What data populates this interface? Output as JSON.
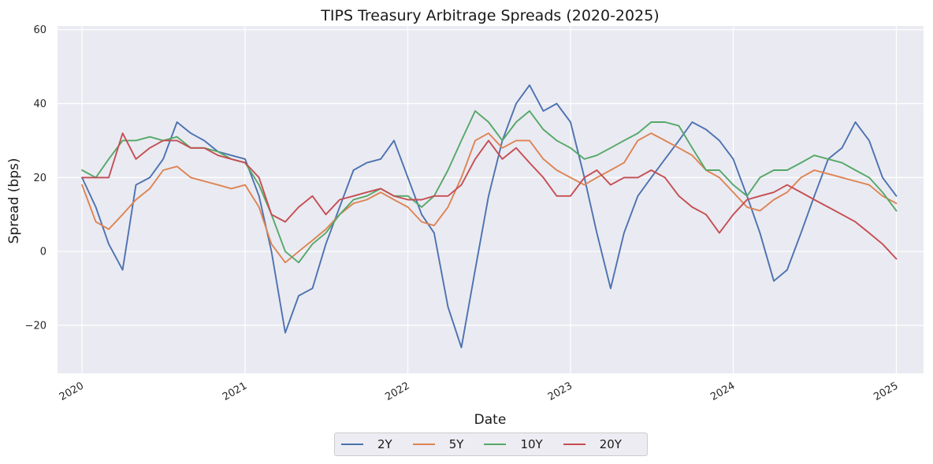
{
  "chart_data": {
    "type": "line",
    "title": "TIPS Treasury Arbitrage Spreads (2020-2025)",
    "xlabel": "Date",
    "ylabel": "Spread (bps)",
    "x_ticks": [
      "2020",
      "2021",
      "2022",
      "2023",
      "2024",
      "2025"
    ],
    "y_ticks": [
      "60",
      "40",
      "20",
      "0",
      "−20"
    ],
    "xlim": [
      "2019-11-07",
      "2025-03-03"
    ],
    "ylim": [
      -33,
      61
    ],
    "grid": true,
    "legend_position": "bottom-center",
    "x": [
      "2020-01-01",
      "2020-02-01",
      "2020-03-01",
      "2020-04-01",
      "2020-05-01",
      "2020-06-01",
      "2020-07-01",
      "2020-08-01",
      "2020-09-01",
      "2020-10-01",
      "2020-11-01",
      "2020-12-01",
      "2021-01-01",
      "2021-02-01",
      "2021-03-01",
      "2021-04-01",
      "2021-05-01",
      "2021-06-01",
      "2021-07-01",
      "2021-08-01",
      "2021-09-01",
      "2021-10-01",
      "2021-11-01",
      "2021-12-01",
      "2022-01-01",
      "2022-02-01",
      "2022-03-01",
      "2022-04-01",
      "2022-05-01",
      "2022-06-01",
      "2022-07-01",
      "2022-08-01",
      "2022-09-01",
      "2022-10-01",
      "2022-11-01",
      "2022-12-01",
      "2023-01-01",
      "2023-02-01",
      "2023-03-01",
      "2023-04-01",
      "2023-05-01",
      "2023-06-01",
      "2023-07-01",
      "2023-08-01",
      "2023-09-01",
      "2023-10-01",
      "2023-11-01",
      "2023-12-01",
      "2024-01-01",
      "2024-02-01",
      "2024-03-01",
      "2024-04-01",
      "2024-05-01",
      "2024-06-01",
      "2024-07-01",
      "2024-08-01",
      "2024-09-01",
      "2024-10-01",
      "2024-11-01",
      "2024-12-01",
      "2025-01-01"
    ],
    "series": [
      {
        "name": "2Y",
        "color": "#4c72b0",
        "values": [
          20,
          12,
          2,
          -5,
          18,
          20,
          25,
          35,
          32,
          30,
          27,
          26,
          25,
          15,
          0,
          -22,
          -12,
          -10,
          2,
          12,
          22,
          24,
          25,
          30,
          20,
          10,
          5,
          -15,
          -26,
          -5,
          15,
          30,
          40,
          45,
          38,
          40,
          35,
          20,
          5,
          -10,
          5,
          15,
          20,
          25,
          30,
          35,
          33,
          30,
          25,
          15,
          5,
          -8,
          -5,
          5,
          15,
          25,
          28,
          35,
          30,
          20,
          15
        ]
      },
      {
        "name": "5Y",
        "color": "#dd8452",
        "values": [
          18,
          8,
          6,
          10,
          14,
          17,
          22,
          23,
          20,
          19,
          18,
          17,
          18,
          12,
          2,
          -3,
          0,
          3,
          6,
          10,
          13,
          14,
          16,
          14,
          12,
          8,
          7,
          12,
          20,
          30,
          32,
          28,
          30,
          30,
          25,
          22,
          20,
          18,
          20,
          22,
          24,
          30,
          32,
          30,
          28,
          26,
          22,
          20,
          16,
          12,
          11,
          14,
          16,
          20,
          22,
          21,
          20,
          19,
          18,
          15,
          13
        ]
      },
      {
        "name": "10Y",
        "color": "#55a868",
        "values": [
          22,
          20,
          25,
          30,
          30,
          31,
          30,
          31,
          28,
          28,
          27,
          25,
          24,
          18,
          10,
          0,
          -3,
          2,
          5,
          10,
          14,
          15,
          17,
          15,
          15,
          12,
          15,
          22,
          30,
          38,
          35,
          30,
          35,
          38,
          33,
          30,
          28,
          25,
          26,
          28,
          30,
          32,
          35,
          35,
          34,
          28,
          22,
          22,
          18,
          15,
          20,
          22,
          22,
          24,
          26,
          25,
          24,
          22,
          20,
          16,
          11
        ]
      },
      {
        "name": "20Y",
        "color": "#c44e52",
        "values": [
          20,
          20,
          20,
          32,
          25,
          28,
          30,
          30,
          28,
          28,
          26,
          25,
          24,
          20,
          10,
          8,
          12,
          15,
          10,
          14,
          15,
          16,
          17,
          15,
          14,
          14,
          15,
          15,
          18,
          25,
          30,
          25,
          28,
          24,
          20,
          15,
          15,
          20,
          22,
          18,
          20,
          20,
          22,
          20,
          15,
          12,
          10,
          5,
          10,
          14,
          15,
          16,
          18,
          16,
          14,
          12,
          10,
          8,
          5,
          2,
          -2
        ]
      }
    ]
  }
}
